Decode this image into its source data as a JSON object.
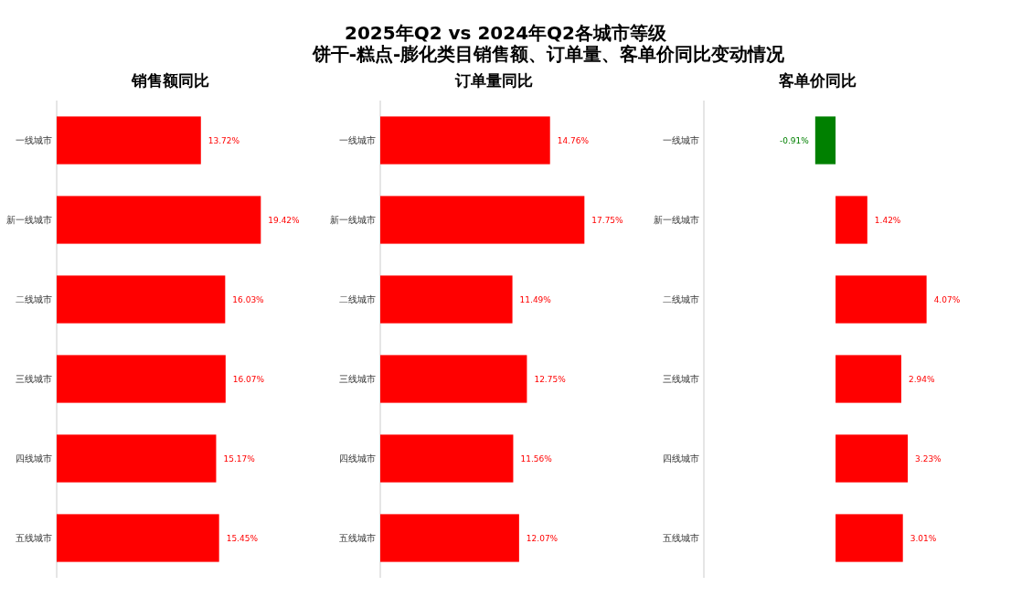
{
  "chart_data": [
    {
      "type": "other",
      "title": "2025年Q2 vs 2024年Q2各城市等级",
      "subtitle": "饼干-糕点-膨化类目销售额、订单量、客单价同比变动情况"
    },
    {
      "type": "bar",
      "orientation": "horizontal",
      "title": "销售额同比",
      "categories": [
        "一线城市",
        "新一线城市",
        "二线城市",
        "三线城市",
        "四线城市",
        "五线城市"
      ],
      "values": [
        13.72,
        19.42,
        16.03,
        16.07,
        15.17,
        15.45
      ],
      "value_labels": [
        "13.72%",
        "19.42%",
        "16.03%",
        "16.07%",
        "15.17%",
        "15.45%"
      ],
      "colors": [
        "#ff0000",
        "#ff0000",
        "#ff0000",
        "#ff0000",
        "#ff0000",
        "#ff0000"
      ]
    },
    {
      "type": "bar",
      "orientation": "horizontal",
      "title": "订单量同比",
      "categories": [
        "一线城市",
        "新一线城市",
        "二线城市",
        "三线城市",
        "四线城市",
        "五线城市"
      ],
      "values": [
        14.76,
        17.75,
        11.49,
        12.75,
        11.56,
        12.07
      ],
      "value_labels": [
        "14.76%",
        "17.75%",
        "11.49%",
        "12.75%",
        "11.56%",
        "12.07%"
      ],
      "colors": [
        "#ff0000",
        "#ff0000",
        "#ff0000",
        "#ff0000",
        "#ff0000",
        "#ff0000"
      ]
    },
    {
      "type": "bar",
      "orientation": "horizontal",
      "title": "客单价同比",
      "categories": [
        "一线城市",
        "新一线城市",
        "二线城市",
        "三线城市",
        "四线城市",
        "五线城市"
      ],
      "values": [
        -0.91,
        1.42,
        4.07,
        2.94,
        3.23,
        3.01
      ],
      "value_labels": [
        "-0.91%",
        "1.42%",
        "4.07%",
        "2.94%",
        "3.23%",
        "3.01%"
      ],
      "colors": [
        "#008000",
        "#ff0000",
        "#ff0000",
        "#ff0000",
        "#ff0000",
        "#ff0000"
      ]
    }
  ]
}
